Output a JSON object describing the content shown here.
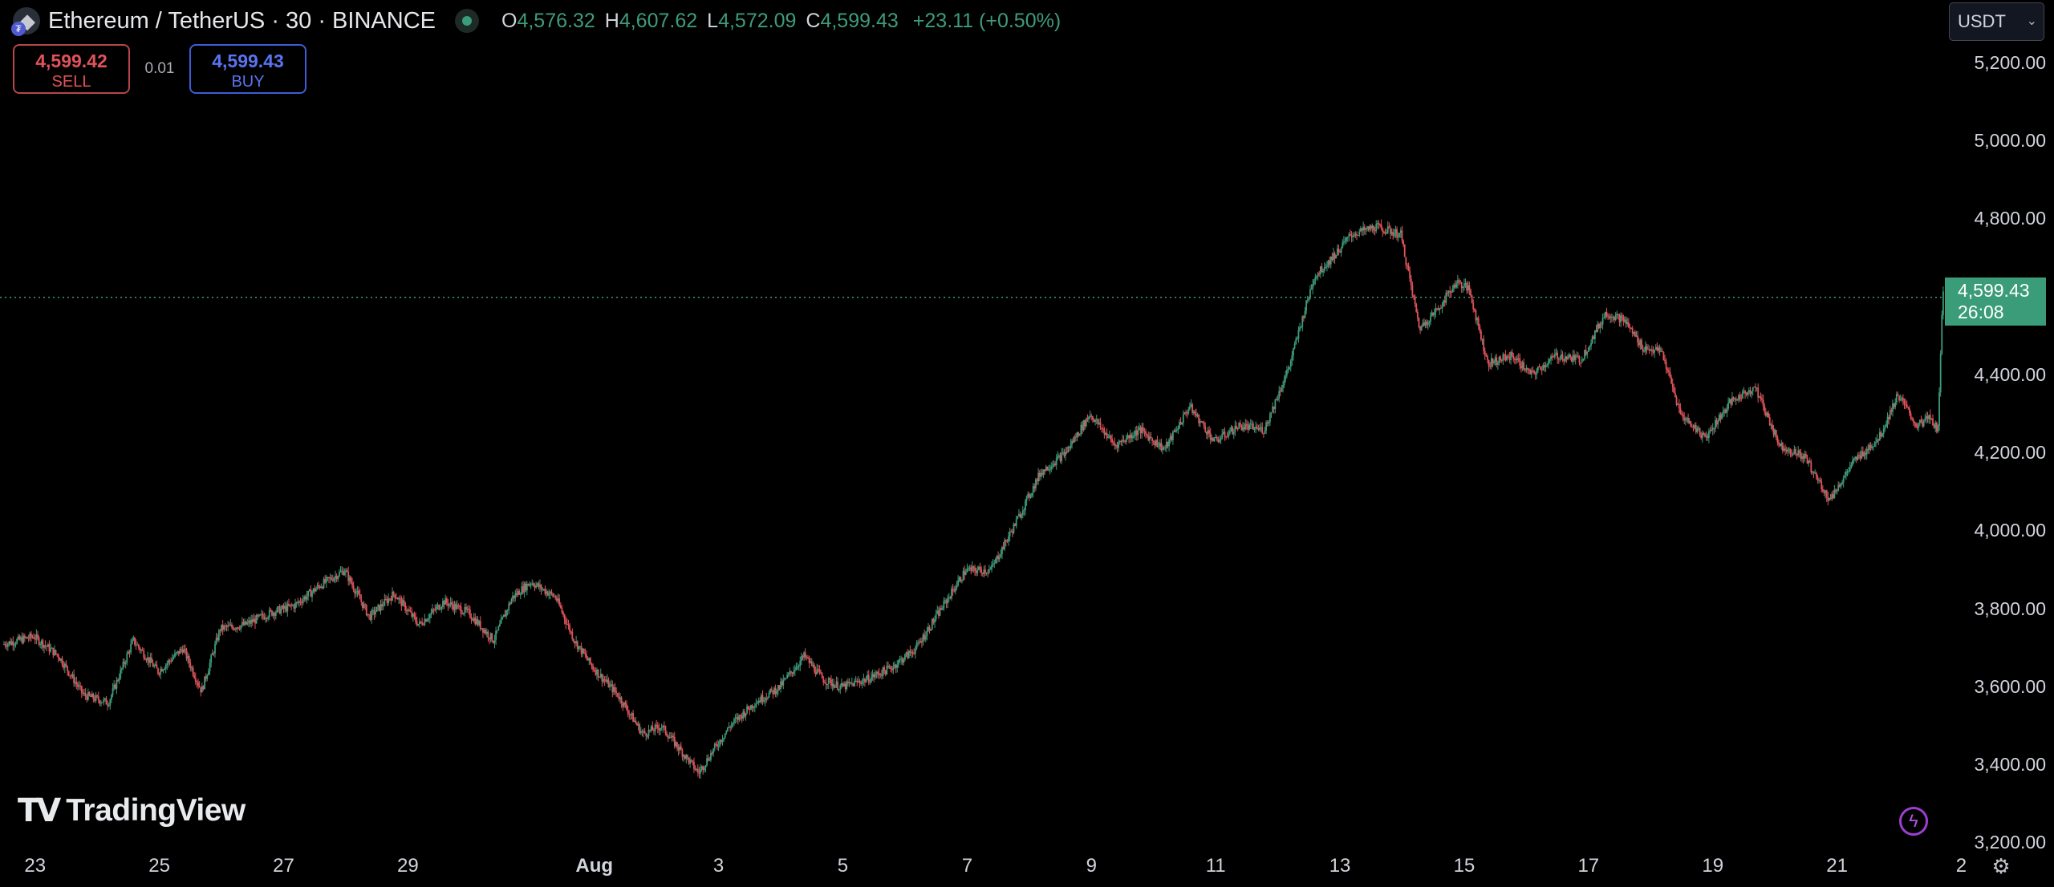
{
  "header": {
    "symbol_icon": "ethereum-icon",
    "title": "Ethereum / TetherUS · 30 · BINANCE",
    "ohlc": {
      "open_label": "O",
      "open": "4,576.32",
      "high_label": "H",
      "high": "4,607.62",
      "low_label": "L",
      "low": "4,572.09",
      "close_label": "C",
      "close": "4,599.43",
      "change": "+23.11 (+0.50%)"
    },
    "up_color": "#3e9b7b"
  },
  "trade": {
    "sell_price": "4,599.42",
    "sell_label": "SELL",
    "spread": "0.01",
    "buy_price": "4,599.43",
    "buy_label": "BUY",
    "sell_color": "#e0535a",
    "buy_color": "#5a74f0"
  },
  "currency_select": {
    "value": "USDT",
    "icon": "chevron-down-icon"
  },
  "last_price": {
    "price": "4,599.43",
    "countdown": "26:08",
    "color": "#3b9c7a"
  },
  "branding": {
    "logo_mark": "TV",
    "name": "TradingView"
  },
  "icons": {
    "alert": "lightning-icon",
    "settings": "gear-icon"
  },
  "chart_data": {
    "type": "candlestick",
    "timeframe_minutes": 30,
    "ylim": [
      3100,
      5300
    ],
    "y_ticks": [
      3200,
      3400,
      3600,
      3800,
      4000,
      4200,
      4400,
      4600,
      4800,
      5000,
      5200
    ],
    "y_tick_labels": [
      "3,200.00",
      "3,400.00",
      "3,600.00",
      "3,800.00",
      "4,000.00",
      "4,200.00",
      "4,400.00",
      "4,600.00",
      "4,800.00",
      "5,000.00",
      "5,200.00"
    ],
    "x_tick_labels": [
      "23",
      "25",
      "27",
      "29",
      "Aug",
      "3",
      "5",
      "7",
      "9",
      "11",
      "13",
      "15",
      "17",
      "19",
      "21",
      "2"
    ],
    "x_tick_days": [
      -9,
      -7,
      -5,
      -3,
      0,
      2,
      4,
      6,
      8,
      10,
      12,
      14,
      16,
      18,
      20,
      22
    ],
    "x_range_days": [
      -9.5,
      21.8
    ],
    "last_price": 4599.43,
    "path_days": [
      -9.5,
      -9.0,
      -8.6,
      -8.2,
      -7.8,
      -7.4,
      -7.0,
      -6.6,
      -6.3,
      -6.0,
      -5.6,
      -5.2,
      -4.8,
      -4.4,
      -4.0,
      -3.6,
      -3.2,
      -2.8,
      -2.4,
      -2.0,
      -1.6,
      -1.3,
      -1.0,
      -0.6,
      -0.3,
      0.0,
      0.4,
      0.8,
      1.1,
      1.4,
      1.7,
      1.9,
      2.2,
      2.6,
      3.0,
      3.4,
      3.7,
      4.0,
      4.4,
      4.8,
      5.2,
      5.6,
      6.0,
      6.4,
      6.8,
      7.2,
      7.6,
      8.0,
      8.4,
      8.8,
      9.2,
      9.6,
      10.0,
      10.4,
      10.8,
      11.2,
      11.6,
      12.0,
      12.2,
      12.6,
      13.0,
      13.3,
      13.6,
      13.9,
      14.1,
      14.4,
      14.8,
      15.1,
      15.5,
      15.9,
      16.3,
      16.6,
      16.9,
      17.2,
      17.5,
      17.9,
      18.3,
      18.7,
      19.1,
      19.5,
      19.9,
      20.3,
      20.7,
      21.0,
      21.3,
      21.5,
      21.65,
      21.72
    ],
    "path_prices": [
      3710,
      3730,
      3680,
      3580,
      3560,
      3720,
      3640,
      3700,
      3590,
      3750,
      3760,
      3790,
      3810,
      3860,
      3900,
      3780,
      3840,
      3760,
      3820,
      3790,
      3720,
      3830,
      3870,
      3830,
      3720,
      3650,
      3580,
      3480,
      3500,
      3440,
      3380,
      3430,
      3500,
      3560,
      3600,
      3680,
      3620,
      3600,
      3620,
      3650,
      3700,
      3800,
      3900,
      3900,
      4020,
      4150,
      4200,
      4300,
      4220,
      4260,
      4210,
      4320,
      4230,
      4270,
      4260,
      4420,
      4650,
      4720,
      4760,
      4780,
      4760,
      4520,
      4570,
      4640,
      4620,
      4430,
      4450,
      4400,
      4450,
      4440,
      4560,
      4540,
      4470,
      4460,
      4300,
      4240,
      4330,
      4370,
      4220,
      4190,
      4080,
      4180,
      4240,
      4350,
      4270,
      4290,
      4260,
      4620
    ]
  }
}
